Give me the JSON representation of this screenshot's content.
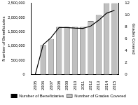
{
  "chart_data": {
    "type": "bar",
    "categories": [
      "2005",
      "2006",
      "2007",
      "2008",
      "2009",
      "2010",
      "2011",
      "2012",
      "2013",
      "2014",
      "2015"
    ],
    "series": [
      {
        "name": "Number of Grades Covered",
        "type": "bar",
        "axis": "y2",
        "color": "#c0c0c0",
        "values": [
          0,
          5,
          6,
          8,
          8,
          8,
          8,
          9,
          10,
          12,
          12
        ]
      },
      {
        "name": "Number of Beneficiaries",
        "type": "line",
        "color": "#000000",
        "marker": "none",
        "line_style": "solid",
        "values": [
          0,
          1050000,
          1300000,
          1650000,
          1650000,
          1630000,
          1620000,
          1700000,
          1900000,
          2150000,
          2250000
        ]
      }
    ],
    "y_label": "Number of Beneficiaries",
    "y2_label": "Grades Covered",
    "ylim": [
      0,
      2500000
    ],
    "yticks": [
      0,
      {
        "value": 500000,
        "label": "500,000"
      },
      {
        "value": 1000000,
        "label": "1,000,000"
      },
      {
        "value": 1500000,
        "label": "1,500,000"
      },
      {
        "value": 2000000,
        "label": "2,000,000"
      },
      {
        "value": 2500000,
        "label": "2,500,000"
      }
    ],
    "y2lim": [
      0,
      12
    ],
    "y2ticks": [
      0,
      2,
      4,
      6,
      8,
      10,
      12
    ],
    "legend": "bottom",
    "grid": false
  }
}
